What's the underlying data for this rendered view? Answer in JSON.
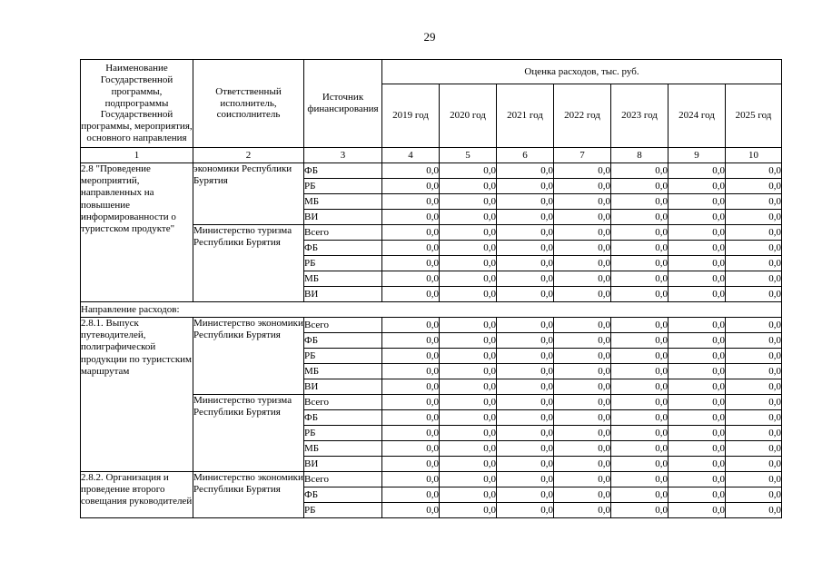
{
  "page_number": "29",
  "table": {
    "headers": {
      "name": "Наименование Государственной программы, подпрограммы Государственной программы, мероприятия, основного направления",
      "executor": "Ответственный исполнитель, соисполнитель",
      "source": "Источник финансирования",
      "expenses": "Оценка расходов, тыс. руб.",
      "years": [
        "2019 год",
        "2020 год",
        "2021 год",
        "2022 год",
        "2023 год",
        "2024 год",
        "2025 год"
      ],
      "column_numbers": [
        "1",
        "2",
        "3",
        "4",
        "5",
        "6",
        "7",
        "8",
        "9",
        "10"
      ]
    },
    "blocks": [
      {
        "type": "section",
        "name": "2.8 \"Проведение мероприятий, направленных на повышение информированности о туристском продукте\"",
        "executors": [
          {
            "name": "экономики Республики Бурятия",
            "rows": [
              {
                "source": "ФБ",
                "values": [
                  "0,0",
                  "0,0",
                  "0,0",
                  "0,0",
                  "0,0",
                  "0,0",
                  "0,0"
                ]
              },
              {
                "source": "РБ",
                "values": [
                  "0,0",
                  "0,0",
                  "0,0",
                  "0,0",
                  "0,0",
                  "0,0",
                  "0,0"
                ]
              },
              {
                "source": "МБ",
                "values": [
                  "0,0",
                  "0,0",
                  "0,0",
                  "0,0",
                  "0,0",
                  "0,0",
                  "0,0"
                ]
              },
              {
                "source": "ВИ",
                "values": [
                  "0,0",
                  "0,0",
                  "0,0",
                  "0,0",
                  "0,0",
                  "0,0",
                  "0,0"
                ]
              }
            ]
          },
          {
            "name": "Министерство туризма Республики Бурятия",
            "rows": [
              {
                "source": "Всего",
                "values": [
                  "0,0",
                  "0,0",
                  "0,0",
                  "0,0",
                  "0,0",
                  "0,0",
                  "0,0"
                ]
              },
              {
                "source": "ФБ",
                "values": [
                  "0,0",
                  "0,0",
                  "0,0",
                  "0,0",
                  "0,0",
                  "0,0",
                  "0,0"
                ]
              },
              {
                "source": "РБ",
                "values": [
                  "0,0",
                  "0,0",
                  "0,0",
                  "0,0",
                  "0,0",
                  "0,0",
                  "0,0"
                ]
              },
              {
                "source": "МБ",
                "values": [
                  "0,0",
                  "0,0",
                  "0,0",
                  "0,0",
                  "0,0",
                  "0,0",
                  "0,0"
                ]
              },
              {
                "source": "ВИ",
                "values": [
                  "0,0",
                  "0,0",
                  "0,0",
                  "0,0",
                  "0,0",
                  "0,0",
                  "0,0"
                ]
              }
            ]
          }
        ]
      },
      {
        "type": "divider",
        "label": "Направление расходов:"
      },
      {
        "type": "section",
        "name": "2.8.1. Выпуск путеводителей, полиграфической продукции по туристским маршрутам",
        "executors": [
          {
            "name": "Министерство экономики Республики Бурятия",
            "rows": [
              {
                "source": "Всего",
                "values": [
                  "0,0",
                  "0,0",
                  "0,0",
                  "0,0",
                  "0,0",
                  "0,0",
                  "0,0"
                ]
              },
              {
                "source": "ФБ",
                "values": [
                  "0,0",
                  "0,0",
                  "0,0",
                  "0,0",
                  "0,0",
                  "0,0",
                  "0,0"
                ]
              },
              {
                "source": "РБ",
                "values": [
                  "0,0",
                  "0,0",
                  "0,0",
                  "0,0",
                  "0,0",
                  "0,0",
                  "0,0"
                ]
              },
              {
                "source": "МБ",
                "values": [
                  "0,0",
                  "0,0",
                  "0,0",
                  "0,0",
                  "0,0",
                  "0,0",
                  "0,0"
                ]
              },
              {
                "source": "ВИ",
                "values": [
                  "0,0",
                  "0,0",
                  "0,0",
                  "0,0",
                  "0,0",
                  "0,0",
                  "0,0"
                ]
              }
            ]
          },
          {
            "name": "Министерство туризма Республики Бурятия",
            "rows": [
              {
                "source": "Всего",
                "values": [
                  "0,0",
                  "0,0",
                  "0,0",
                  "0,0",
                  "0,0",
                  "0,0",
                  "0,0"
                ]
              },
              {
                "source": "ФБ",
                "values": [
                  "0,0",
                  "0,0",
                  "0,0",
                  "0,0",
                  "0,0",
                  "0,0",
                  "0,0"
                ]
              },
              {
                "source": "РБ",
                "values": [
                  "0,0",
                  "0,0",
                  "0,0",
                  "0,0",
                  "0,0",
                  "0,0",
                  "0,0"
                ]
              },
              {
                "source": "МБ",
                "values": [
                  "0,0",
                  "0,0",
                  "0,0",
                  "0,0",
                  "0,0",
                  "0,0",
                  "0,0"
                ]
              },
              {
                "source": "ВИ",
                "values": [
                  "0,0",
                  "0,0",
                  "0,0",
                  "0,0",
                  "0,0",
                  "0,0",
                  "0,0"
                ]
              }
            ]
          }
        ]
      },
      {
        "type": "section",
        "name": "2.8.2. Организация и проведение второго совещания руководителей",
        "executors": [
          {
            "name": "Министерство экономики Республики Бурятия",
            "rows": [
              {
                "source": "Всего",
                "values": [
                  "0,0",
                  "0,0",
                  "0,0",
                  "0,0",
                  "0,0",
                  "0,0",
                  "0,0"
                ]
              },
              {
                "source": "ФБ",
                "values": [
                  "0,0",
                  "0,0",
                  "0,0",
                  "0,0",
                  "0,0",
                  "0,0",
                  "0,0"
                ]
              },
              {
                "source": "РБ",
                "values": [
                  "0,0",
                  "0,0",
                  "0,0",
                  "0,0",
                  "0,0",
                  "0,0",
                  "0,0"
                ]
              }
            ]
          }
        ]
      }
    ]
  }
}
